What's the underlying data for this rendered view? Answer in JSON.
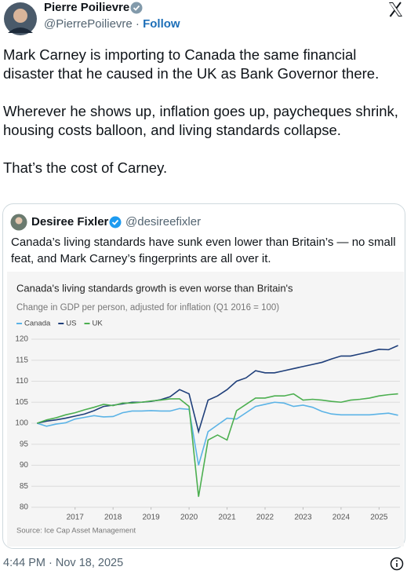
{
  "author": {
    "name": "Pierre Poilievre",
    "handle": "@PierrePoilievre",
    "follow": "Follow"
  },
  "tweet": {
    "paragraphs": [
      "Mark Carney is importing to Canada the same financial disaster that he caused in the UK as Bank Governor there.",
      "Wherever he shows up, inflation goes up, paycheques shrink, housing costs balloon, and living standards collapse.",
      "That’s the cost of Carney."
    ]
  },
  "quote": {
    "name": "Desiree Fixler",
    "handle": "@desireefixler",
    "text": "Canada’s living standards have sunk even lower than Britain’s — no small feat, and Mark Carney’s fingerprints are all over it."
  },
  "chart_data": {
    "type": "line",
    "title": "Canada's living standards growth is even worse than Britain's",
    "subtitle": "Change in GDP per person, adjusted for inflation (Q1 2016 = 100)",
    "source": "Source: Ice Cap Asset Management",
    "x": [
      2016,
      2016.25,
      2016.5,
      2016.75,
      2017,
      2017.25,
      2017.5,
      2017.75,
      2018,
      2018.25,
      2018.5,
      2018.75,
      2019,
      2019.25,
      2019.5,
      2019.75,
      2020,
      2020.25,
      2020.5,
      2020.75,
      2021,
      2021.25,
      2021.5,
      2021.75,
      2022,
      2022.25,
      2022.5,
      2022.75,
      2023,
      2023.25,
      2023.5,
      2023.75,
      2024,
      2024.25,
      2024.5,
      2024.75,
      2025,
      2025.25,
      2025.5
    ],
    "series": [
      {
        "name": "Canada",
        "color": "#5bb3e6",
        "values": [
          100,
          99.3,
          99.8,
          100.1,
          101,
          101.4,
          101.8,
          101.5,
          101.6,
          102.5,
          102.9,
          102.9,
          103,
          102.9,
          102.9,
          103.5,
          103.3,
          90,
          98,
          99.6,
          101.2,
          101,
          102.5,
          104,
          104.5,
          105,
          104.8,
          104,
          104.3,
          103.8,
          102.8,
          102.2,
          102,
          102,
          102,
          102,
          102.2,
          102.4,
          101.9
        ]
      },
      {
        "name": "US",
        "color": "#1f3f7a",
        "values": [
          100,
          100.5,
          100.8,
          101.2,
          101.7,
          102.2,
          103,
          104,
          104.3,
          104.6,
          105,
          105,
          105.2,
          105.6,
          106.3,
          108,
          107,
          98,
          105.5,
          106.5,
          108,
          110,
          110.8,
          112.5,
          112,
          112,
          112.5,
          113,
          113.5,
          114,
          114.5,
          115.3,
          116,
          116,
          116.5,
          117,
          117.6,
          117.5,
          118.5
        ]
      },
      {
        "name": "UK",
        "color": "#4caf50",
        "values": [
          100,
          100.8,
          101.3,
          102,
          102.5,
          103.2,
          103.8,
          104.5,
          104.2,
          104.8,
          104.8,
          105,
          105.3,
          105.5,
          105.8,
          105.8,
          104,
          82.5,
          96,
          97.2,
          96,
          103,
          104.5,
          106,
          106,
          106.5,
          106.5,
          107,
          105.5,
          105.7,
          105.5,
          105.2,
          105,
          105.5,
          105.7,
          106,
          106.5,
          106.8,
          107
        ]
      }
    ],
    "xlim": [
      2015.85,
      2025.55
    ],
    "xticks": [
      2017,
      2018,
      2019,
      2020,
      2021,
      2022,
      2023,
      2024,
      2025
    ],
    "ylim": [
      80,
      120
    ],
    "yticks": [
      80,
      85,
      90,
      95,
      100,
      105,
      110,
      115,
      120
    ],
    "grid": true
  },
  "footer": {
    "timestamp": "4:44 PM · Nov 18, 2025"
  }
}
